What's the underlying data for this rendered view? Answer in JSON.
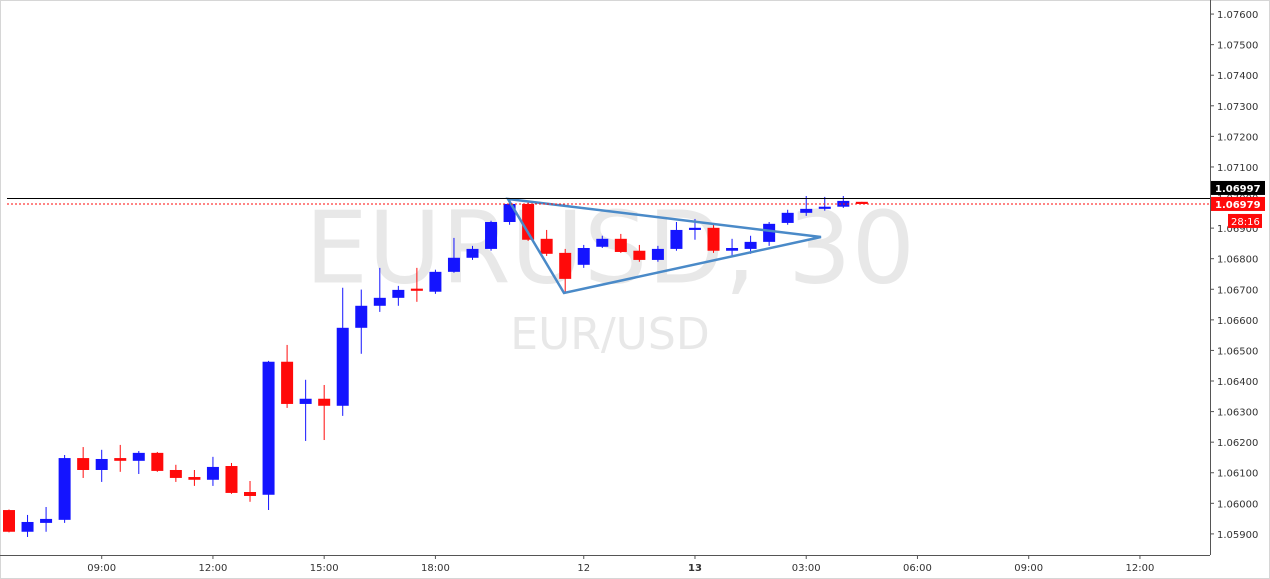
{
  "chart_data": {
    "type": "candlestick",
    "title": "EURUSD, 30",
    "subtitle": "EUR/USD",
    "categories": [
      null,
      null,
      null,
      null,
      null,
      "09:00",
      null,
      null,
      null,
      null,
      null,
      "12:00",
      null,
      null,
      null,
      null,
      null,
      "15:00",
      null,
      null,
      null,
      null,
      null,
      "18:00",
      null,
      null,
      null,
      null,
      null,
      null,
      null,
      "12",
      null,
      null,
      null,
      null,
      null,
      "13",
      null,
      null,
      null,
      null,
      null,
      "03:00",
      null,
      null,
      null,
      null,
      null,
      "06:00",
      null,
      null,
      null,
      null,
      null,
      "09:00",
      null,
      null,
      null,
      null,
      null,
      "12:00",
      null,
      null,
      null
    ],
    "bold_categories": [
      "13"
    ],
    "open": [
      1.05978,
      1.05907,
      1.05936,
      1.05946,
      1.06148,
      1.06109,
      1.06148,
      1.06139,
      1.06165,
      1.06109,
      1.06086,
      1.06077,
      1.06122,
      1.06037,
      1.06028,
      1.06463,
      1.06325,
      1.06342,
      1.06319,
      1.06574,
      1.06646,
      1.06672,
      1.06702,
      1.06692,
      1.06757,
      1.06803,
      1.06832,
      1.0692,
      1.06979,
      1.06865,
      1.06819,
      1.0678,
      1.06839,
      1.06865,
      1.06826,
      1.06796,
      1.06832,
      1.06894,
      1.06901,
      1.06826,
      1.06832,
      1.06855,
      1.06917,
      1.0695,
      1.06963,
      1.0697,
      1.06986,
      null,
      null,
      null,
      null,
      null,
      null,
      null,
      null,
      null,
      null,
      null,
      null,
      null,
      null,
      null,
      null,
      null,
      null
    ],
    "high": [
      1.0598,
      1.05962,
      1.05988,
      1.06158,
      1.06184,
      1.06175,
      1.06191,
      1.06171,
      1.06168,
      1.06126,
      1.06109,
      1.06152,
      1.06132,
      1.06073,
      1.06466,
      1.06518,
      1.06404,
      1.06387,
      1.06705,
      1.06699,
      1.0677,
      1.06711,
      1.0677,
      1.06764,
      1.06868,
      1.06842,
      1.06924,
      1.06996,
      1.06986,
      1.06894,
      1.06832,
      1.06845,
      1.06875,
      1.06881,
      1.06845,
      1.06842,
      1.0692,
      1.0693,
      1.06911,
      1.06865,
      1.06875,
      1.0692,
      1.0696,
      1.07005,
      1.07002,
      1.07005,
      1.06986,
      null,
      null,
      null,
      null,
      null,
      null,
      null,
      null,
      null,
      null,
      null,
      null,
      null,
      null,
      null,
      null,
      null,
      null
    ],
    "low": [
      1.05905,
      1.0589,
      1.05907,
      1.05936,
      1.06083,
      1.0607,
      1.06103,
      1.06096,
      1.06103,
      1.0607,
      1.06057,
      1.06057,
      1.06031,
      1.06005,
      1.05978,
      1.06312,
      1.06204,
      1.06207,
      1.06286,
      1.06489,
      1.06626,
      1.06646,
      1.06659,
      1.06685,
      1.06754,
      1.06796,
      1.06826,
      1.06911,
      1.06858,
      1.06809,
      1.06688,
      1.0677,
      1.06835,
      1.06819,
      1.0679,
      1.0679,
      1.06826,
      1.06862,
      1.06819,
      1.06806,
      1.06816,
      1.06842,
      1.06911,
      1.0694,
      1.06957,
      1.06966,
      1.06979,
      null,
      null,
      null,
      null,
      null,
      null,
      null,
      null,
      null,
      null,
      null,
      null,
      null,
      null,
      null,
      null,
      null,
      null
    ],
    "close": [
      1.05907,
      1.05939,
      1.05949,
      1.06148,
      1.06109,
      1.06145,
      1.06139,
      1.06165,
      1.06106,
      1.06083,
      1.06077,
      1.06119,
      1.06034,
      1.06024,
      1.06463,
      1.06325,
      1.06342,
      1.06319,
      1.06574,
      1.06646,
      1.06672,
      1.06698,
      1.06695,
      1.06757,
      1.06803,
      1.06832,
      1.0692,
      1.06979,
      1.06862,
      1.06816,
      1.06734,
      1.06835,
      1.06865,
      1.06822,
      1.06796,
      1.06832,
      1.06894,
      1.06901,
      1.06826,
      1.06835,
      1.06855,
      1.06914,
      1.0695,
      1.06963,
      1.0697,
      1.06989,
      1.06979,
      null,
      null,
      null,
      null,
      null,
      null,
      null,
      null,
      null,
      null,
      null,
      null,
      null,
      null,
      null,
      null,
      null,
      null
    ],
    "up_color": "#1414ff",
    "down_color": "#ff0a0a",
    "ylim": [
      1.05831,
      1.07646
    ],
    "yticks": [
      {
        "value": 1.076,
        "label": "1.07600"
      },
      {
        "value": 1.075,
        "label": "1.07500"
      },
      {
        "value": 1.074,
        "label": "1.07400"
      },
      {
        "value": 1.073,
        "label": "1.07300"
      },
      {
        "value": 1.072,
        "label": "1.07200"
      },
      {
        "value": 1.071,
        "label": "1.07100"
      },
      {
        "value": 1.07,
        "label": "1.07000"
      },
      {
        "value": 1.069,
        "label": "1.06900"
      },
      {
        "value": 1.068,
        "label": "1.06800"
      },
      {
        "value": 1.067,
        "label": "1.06700"
      },
      {
        "value": 1.066,
        "label": "1.06600"
      },
      {
        "value": 1.065,
        "label": "1.06500"
      },
      {
        "value": 1.064,
        "label": "1.06400"
      },
      {
        "value": 1.063,
        "label": "1.06300"
      },
      {
        "value": 1.062,
        "label": "1.06200"
      },
      {
        "value": 1.061,
        "label": "1.06100"
      },
      {
        "value": 1.06,
        "label": "1.06000"
      },
      {
        "value": 1.059,
        "label": "1.05900"
      }
    ],
    "price_line": 1.06997,
    "price_line_color": "#000000",
    "last_price": 1.06979,
    "last_price_color": "#ff0a0a",
    "countdown": "28:16",
    "grid": false
  }
}
